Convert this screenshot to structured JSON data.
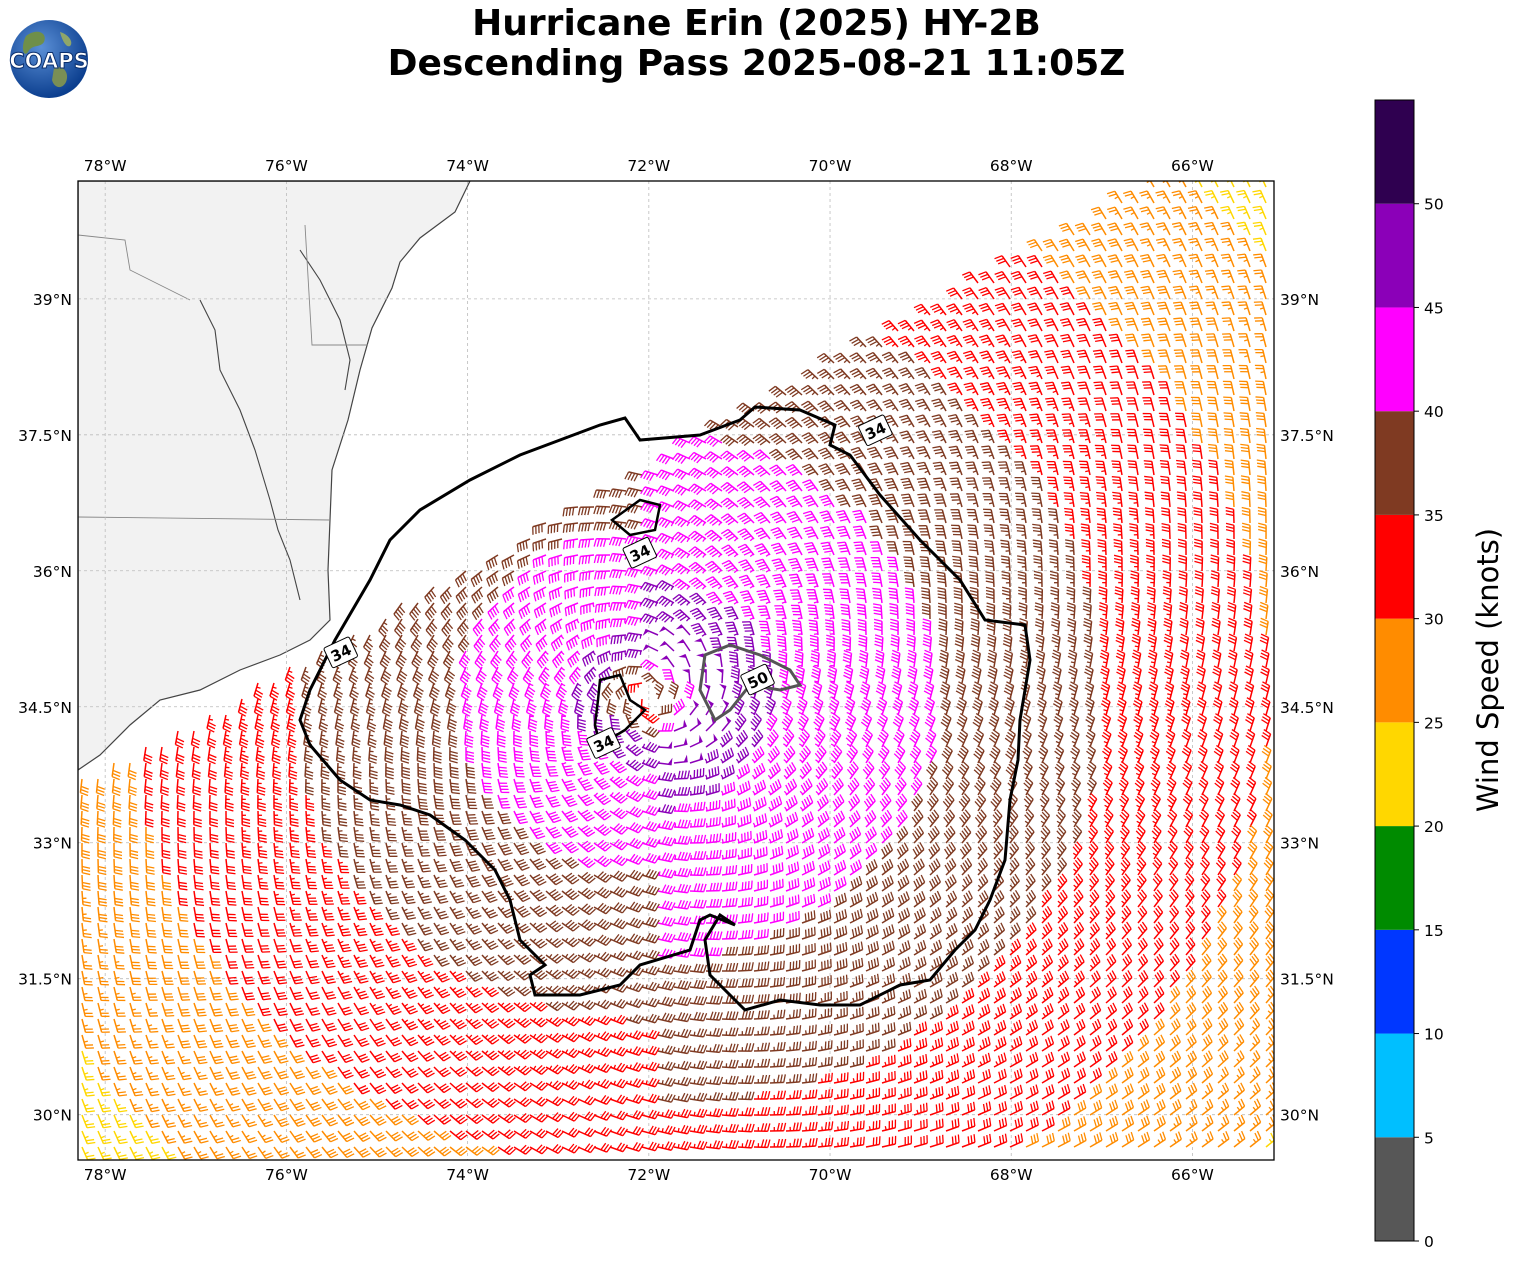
{
  "title": {
    "line1": "Hurricane Erin (2025) HY-2B",
    "line2": "Descending Pass 2025-08-21 11:05Z"
  },
  "logo": {
    "text": "COAPS",
    "icon": "earth-globe-logo"
  },
  "map": {
    "lon_range": [
      -78.3,
      -65.1
    ],
    "lat_range": [
      29.5,
      40.3
    ],
    "lon_ticks": [
      {
        "value": -78,
        "label": "78°W"
      },
      {
        "value": -76,
        "label": "76°W"
      },
      {
        "value": -74,
        "label": "74°W"
      },
      {
        "value": -72,
        "label": "72°W"
      },
      {
        "value": -70,
        "label": "70°W"
      },
      {
        "value": -68,
        "label": "68°W"
      },
      {
        "value": -66,
        "label": "66°W"
      }
    ],
    "lat_ticks": [
      {
        "value": 30,
        "label": "30°N"
      },
      {
        "value": 31.5,
        "label": "31.5°N"
      },
      {
        "value": 33,
        "label": "33°N"
      },
      {
        "value": 34.5,
        "label": "34.5°N"
      },
      {
        "value": 36,
        "label": "36°N"
      },
      {
        "value": 37.5,
        "label": "37.5°N"
      },
      {
        "value": 39,
        "label": "39°N"
      }
    ],
    "gridlines": true,
    "storm_center": {
      "lon": -72.0,
      "lat": 34.6
    },
    "contours": [
      {
        "level": 34,
        "label": "34",
        "label_positions": [
          [
            -75.4,
            35.1
          ],
          [
            -72.1,
            36.2
          ],
          [
            -72.5,
            34.1
          ],
          [
            -69.5,
            37.55
          ]
        ]
      },
      {
        "level": 50,
        "label": "50",
        "label_positions": [
          [
            -70.8,
            34.8
          ]
        ]
      }
    ]
  },
  "colorbar": {
    "label": "Wind Speed (knots)",
    "min": 0,
    "max": 55,
    "bins": [
      {
        "from": 0,
        "to": 5,
        "color": "#575757"
      },
      {
        "from": 5,
        "to": 10,
        "color": "#00bfff"
      },
      {
        "from": 10,
        "to": 15,
        "color": "#0037ff"
      },
      {
        "from": 15,
        "to": 20,
        "color": "#008b00"
      },
      {
        "from": 20,
        "to": 25,
        "color": "#ffd700"
      },
      {
        "from": 25,
        "to": 30,
        "color": "#ff8c00"
      },
      {
        "from": 30,
        "to": 35,
        "color": "#ff0000"
      },
      {
        "from": 35,
        "to": 40,
        "color": "#7f3a22"
      },
      {
        "from": 40,
        "to": 45,
        "color": "#ff00ff"
      },
      {
        "from": 45,
        "to": 50,
        "color": "#8b00b8"
      },
      {
        "from": 50,
        "to": 55,
        "color": "#2f0050"
      }
    ],
    "ticks": [
      "0",
      "5",
      "10",
      "15",
      "20",
      "25",
      "30",
      "35",
      "40",
      "45",
      "50"
    ]
  }
}
